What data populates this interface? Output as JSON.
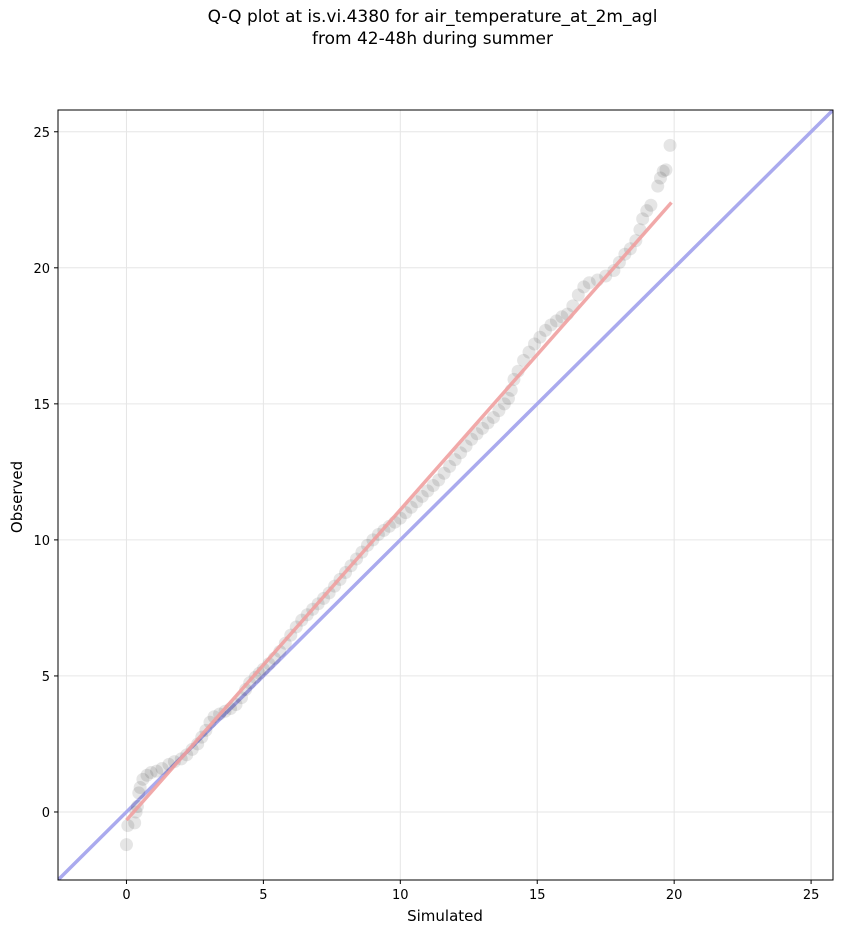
{
  "chart_data": {
    "type": "scatter",
    "title_line1": "Q-Q plot at is.vi.4380 for air_temperature_at_2m_agl",
    "title_line2": "from 42-48h during summer",
    "xlabel": "Simulated",
    "ylabel": "Observed",
    "xlim": [
      -2.5,
      25.8
    ],
    "ylim": [
      -2.5,
      25.8
    ],
    "xticks": [
      0,
      5,
      10,
      15,
      20,
      25
    ],
    "yticks": [
      0,
      5,
      10,
      15,
      20,
      25
    ],
    "grid": true,
    "reference_line": {
      "slope": 1,
      "intercept": 0,
      "color": "#aaaaee"
    },
    "fit_line": {
      "x": [
        0.0,
        19.9
      ],
      "y": [
        -0.3,
        22.4
      ],
      "color": "#f0a0a0"
    },
    "point_color": "#000000",
    "points": [
      [
        0.0,
        -1.2
      ],
      [
        0.05,
        -0.5
      ],
      [
        0.3,
        -0.4
      ],
      [
        0.35,
        0.0
      ],
      [
        0.4,
        0.2
      ],
      [
        0.45,
        0.7
      ],
      [
        0.5,
        0.9
      ],
      [
        0.6,
        1.2
      ],
      [
        0.75,
        1.35
      ],
      [
        0.9,
        1.45
      ],
      [
        1.1,
        1.5
      ],
      [
        1.3,
        1.6
      ],
      [
        1.55,
        1.75
      ],
      [
        1.75,
        1.85
      ],
      [
        2.0,
        1.95
      ],
      [
        2.2,
        2.1
      ],
      [
        2.4,
        2.3
      ],
      [
        2.6,
        2.5
      ],
      [
        2.75,
        2.75
      ],
      [
        2.9,
        3.0
      ],
      [
        3.05,
        3.3
      ],
      [
        3.2,
        3.5
      ],
      [
        3.4,
        3.6
      ],
      [
        3.6,
        3.7
      ],
      [
        3.8,
        3.8
      ],
      [
        4.0,
        3.95
      ],
      [
        4.2,
        4.2
      ],
      [
        4.35,
        4.5
      ],
      [
        4.5,
        4.75
      ],
      [
        4.7,
        4.95
      ],
      [
        4.85,
        5.1
      ],
      [
        5.0,
        5.25
      ],
      [
        5.2,
        5.45
      ],
      [
        5.4,
        5.65
      ],
      [
        5.6,
        5.9
      ],
      [
        5.8,
        6.2
      ],
      [
        6.0,
        6.5
      ],
      [
        6.2,
        6.8
      ],
      [
        6.4,
        7.05
      ],
      [
        6.6,
        7.25
      ],
      [
        6.8,
        7.45
      ],
      [
        7.0,
        7.65
      ],
      [
        7.2,
        7.85
      ],
      [
        7.4,
        8.05
      ],
      [
        7.6,
        8.3
      ],
      [
        7.8,
        8.55
      ],
      [
        8.0,
        8.8
      ],
      [
        8.2,
        9.05
      ],
      [
        8.4,
        9.3
      ],
      [
        8.6,
        9.55
      ],
      [
        8.8,
        9.8
      ],
      [
        9.0,
        10.0
      ],
      [
        9.2,
        10.2
      ],
      [
        9.4,
        10.35
      ],
      [
        9.6,
        10.5
      ],
      [
        9.8,
        10.65
      ],
      [
        10.0,
        10.8
      ],
      [
        10.2,
        11.0
      ],
      [
        10.4,
        11.2
      ],
      [
        10.6,
        11.4
      ],
      [
        10.8,
        11.6
      ],
      [
        11.0,
        11.8
      ],
      [
        11.2,
        12.0
      ],
      [
        11.4,
        12.2
      ],
      [
        11.6,
        12.45
      ],
      [
        11.8,
        12.7
      ],
      [
        12.0,
        12.95
      ],
      [
        12.2,
        13.2
      ],
      [
        12.4,
        13.45
      ],
      [
        12.6,
        13.7
      ],
      [
        12.8,
        13.9
      ],
      [
        13.0,
        14.1
      ],
      [
        13.2,
        14.3
      ],
      [
        13.4,
        14.5
      ],
      [
        13.6,
        14.75
      ],
      [
        13.8,
        15.0
      ],
      [
        13.95,
        15.2
      ],
      [
        14.05,
        15.5
      ],
      [
        14.15,
        15.9
      ],
      [
        14.3,
        16.2
      ],
      [
        14.5,
        16.6
      ],
      [
        14.7,
        16.9
      ],
      [
        14.9,
        17.2
      ],
      [
        15.1,
        17.45
      ],
      [
        15.3,
        17.7
      ],
      [
        15.5,
        17.9
      ],
      [
        15.7,
        18.05
      ],
      [
        15.9,
        18.2
      ],
      [
        16.1,
        18.3
      ],
      [
        16.3,
        18.6
      ],
      [
        16.5,
        19.0
      ],
      [
        16.7,
        19.3
      ],
      [
        16.9,
        19.45
      ],
      [
        17.2,
        19.55
      ],
      [
        17.5,
        19.7
      ],
      [
        17.8,
        19.9
      ],
      [
        18.0,
        20.2
      ],
      [
        18.2,
        20.5
      ],
      [
        18.4,
        20.7
      ],
      [
        18.6,
        21.0
      ],
      [
        18.75,
        21.4
      ],
      [
        18.85,
        21.8
      ],
      [
        19.0,
        22.1
      ],
      [
        19.15,
        22.3
      ],
      [
        19.4,
        23.0
      ],
      [
        19.5,
        23.3
      ],
      [
        19.6,
        23.55
      ],
      [
        19.7,
        23.6
      ],
      [
        19.85,
        24.5
      ]
    ]
  }
}
